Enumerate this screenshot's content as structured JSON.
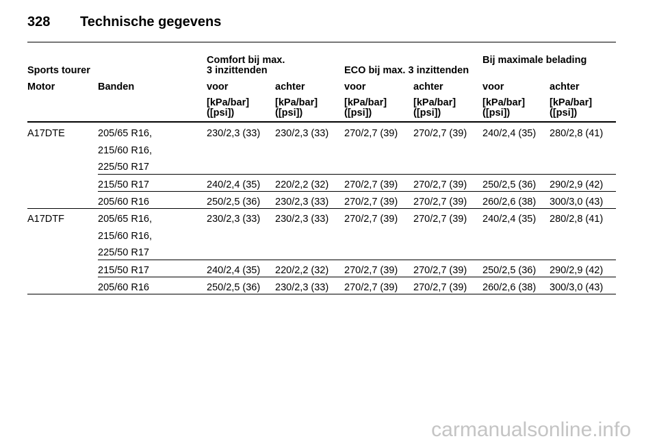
{
  "header": {
    "page_number": "328",
    "title": "Technische gegevens"
  },
  "table": {
    "group_headers": [
      "Sports tourer",
      "Comfort bij max.\n3 inzittenden",
      "ECO bij max. 3 inzittenden",
      "Bij maximale belading"
    ],
    "column_headers": [
      "Motor",
      "Banden",
      "voor",
      "achter",
      "voor",
      "achter",
      "voor",
      "achter"
    ],
    "units": [
      "[kPa/bar]\n([psi])",
      "[kPa/bar]\n([psi])",
      "[kPa/bar]\n([psi])",
      "[kPa/bar]\n([psi])",
      "[kPa/bar]\n([psi])",
      "[kPa/bar]\n([psi])"
    ],
    "groups": [
      {
        "motor": "A17DTE",
        "rows": [
          {
            "tires": [
              "205/65 R16,",
              "215/60 R16,",
              "225/50 R17"
            ],
            "values": [
              "230/2,3 (33)",
              "230/2,3 (33)",
              "270/2,7 (39)",
              "270/2,7 (39)",
              "240/2,4 (35)",
              "280/2,8 (41)"
            ]
          },
          {
            "tires": [
              "215/50 R17"
            ],
            "values": [
              "240/2,4 (35)",
              "220/2,2 (32)",
              "270/2,7 (39)",
              "270/2,7 (39)",
              "250/2,5 (36)",
              "290/2,9 (42)"
            ]
          },
          {
            "tires": [
              "205/60 R16"
            ],
            "values": [
              "250/2,5 (36)",
              "230/2,3 (33)",
              "270/2,7 (39)",
              "270/2,7 (39)",
              "260/2,6 (38)",
              "300/3,0 (43)"
            ]
          }
        ]
      },
      {
        "motor": "A17DTF",
        "rows": [
          {
            "tires": [
              "205/65 R16,",
              "215/60 R16,",
              "225/50 R17"
            ],
            "values": [
              "230/2,3 (33)",
              "230/2,3 (33)",
              "270/2,7 (39)",
              "270/2,7 (39)",
              "240/2,4 (35)",
              "280/2,8 (41)"
            ]
          },
          {
            "tires": [
              "215/50 R17"
            ],
            "values": [
              "240/2,4 (35)",
              "220/2,2 (32)",
              "270/2,7 (39)",
              "270/2,7 (39)",
              "250/2,5 (36)",
              "290/2,9 (42)"
            ]
          },
          {
            "tires": [
              "205/60 R16"
            ],
            "values": [
              "250/2,5 (36)",
              "230/2,3 (33)",
              "270/2,7 (39)",
              "270/2,7 (39)",
              "260/2,6 (38)",
              "300/3,0 (43)"
            ]
          }
        ]
      }
    ]
  },
  "watermark": "carmanualsonline.info"
}
